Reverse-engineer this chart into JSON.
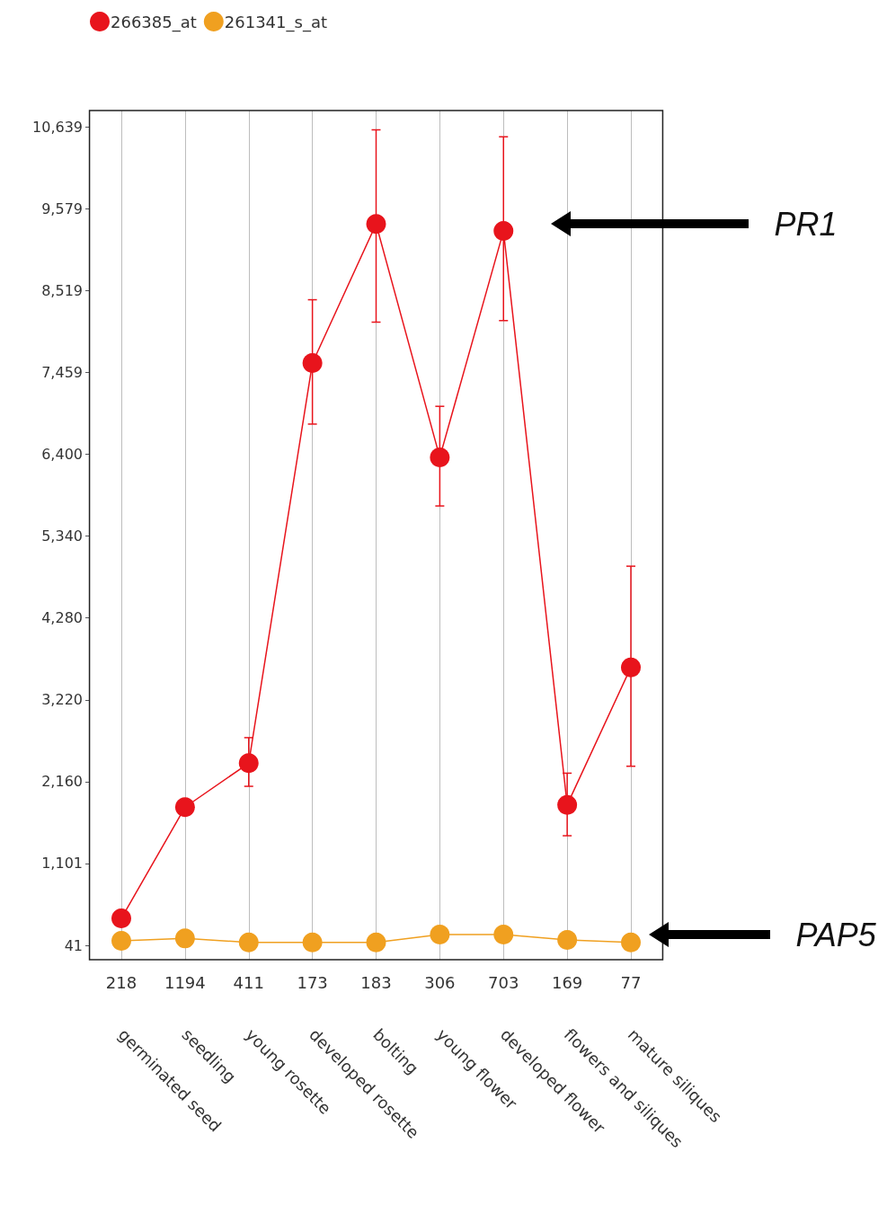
{
  "chart_data": {
    "type": "line",
    "categories": [
      "germinated seed",
      "seedling",
      "young rosette",
      "developed rosette",
      "bolting",
      "young flower",
      "developed flower",
      "flowers and siliques",
      "mature siliques"
    ],
    "series": [
      {
        "name": "266385_at",
        "color": "#e8141c",
        "values": [
          390,
          1830,
          2400,
          7580,
          9380,
          6360,
          9290,
          1860,
          3640
        ],
        "errors": [
          null,
          null,
          [
            2100,
            2730
          ],
          [
            6790,
            8400
          ],
          [
            8110,
            10600
          ],
          [
            5730,
            7020
          ],
          [
            8130,
            10510
          ],
          [
            1460,
            2270
          ],
          [
            2360,
            4950
          ]
        ]
      },
      {
        "name": "261341_s_at",
        "color": "#f0a020",
        "values": [
          100,
          130,
          80,
          80,
          80,
          180,
          180,
          110,
          80
        ]
      }
    ],
    "ylim": [
      -145,
      10850
    ],
    "yticks": [
      {
        "value": 41,
        "label": "41"
      },
      {
        "value": 1101,
        "label": "1,101"
      },
      {
        "value": 2160,
        "label": "2,160"
      },
      {
        "value": 3220,
        "label": "3,220"
      },
      {
        "value": 4280,
        "label": "4,280"
      },
      {
        "value": 5340,
        "label": "5,340"
      },
      {
        "value": 6400,
        "label": "6,400"
      },
      {
        "value": 7459,
        "label": "7,459"
      },
      {
        "value": 8519,
        "label": "8,519"
      },
      {
        "value": 9579,
        "label": "9,579"
      },
      {
        "value": 10639,
        "label": "10,639"
      }
    ],
    "annotations": [
      "218",
      "1194",
      "411",
      "173",
      "183",
      "306",
      "703",
      "169",
      "77",
      "PR1",
      "PAP5"
    ],
    "grid": "x",
    "legend": "top left",
    "marker": "circle",
    "line_style": "solid"
  }
}
